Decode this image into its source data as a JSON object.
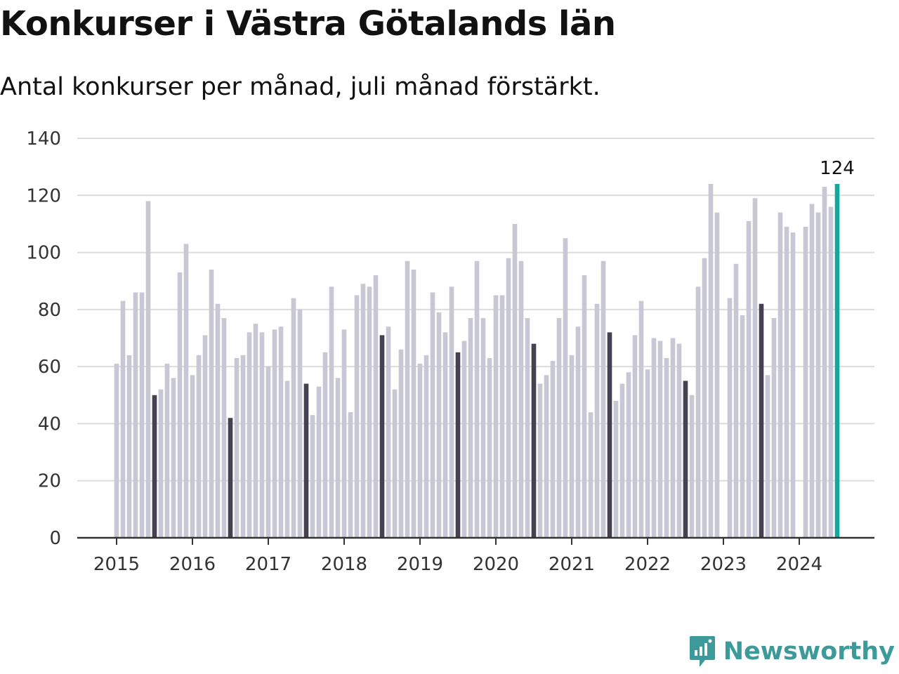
{
  "title": "Konkurser i Västra Götalands län",
  "subtitle": "Antal konkurser per månad, juli månad förstärkt.",
  "brand": {
    "name": "Newsworthy"
  },
  "colors": {
    "bar": "#c8c7d4",
    "july": "#454150",
    "latest": "#13a89e",
    "grid": "#dcdcdc",
    "axis": "#333333"
  },
  "chart_data": {
    "type": "bar",
    "title": "Konkurser i Västra Götalands län",
    "ylim": [
      0,
      140
    ],
    "yticks": [
      0,
      20,
      40,
      60,
      80,
      100,
      120,
      140
    ],
    "xtick_labels": [
      "2015",
      "2016",
      "2017",
      "2018",
      "2019",
      "2020",
      "2021",
      "2022",
      "2023",
      "2024"
    ],
    "grid": true,
    "start": "2015-01",
    "end": "2024-07",
    "highlight_month": 7,
    "value_label": "124",
    "series": [
      {
        "year": 2015,
        "values": [
          61,
          83,
          64,
          86,
          86,
          118,
          50,
          52,
          61,
          56,
          93,
          103
        ]
      },
      {
        "year": 2016,
        "values": [
          57,
          64,
          71,
          94,
          82,
          77,
          42,
          63,
          64,
          72,
          75,
          72
        ]
      },
      {
        "year": 2017,
        "values": [
          60,
          73,
          74,
          55,
          84,
          80,
          54,
          43,
          53,
          65,
          88,
          56
        ]
      },
      {
        "year": 2018,
        "values": [
          73,
          44,
          85,
          89,
          88,
          92,
          71,
          74,
          52,
          66,
          97,
          94
        ]
      },
      {
        "year": 2019,
        "values": [
          61,
          64,
          86,
          79,
          72,
          88,
          65,
          69,
          77,
          97,
          77,
          63
        ]
      },
      {
        "year": 2020,
        "values": [
          85,
          85,
          98,
          110,
          97,
          77,
          68,
          54,
          57,
          62,
          77,
          105
        ]
      },
      {
        "year": 2021,
        "values": [
          64,
          74,
          92,
          44,
          82,
          97,
          72,
          48,
          54,
          58,
          71,
          83
        ]
      },
      {
        "year": 2022,
        "values": [
          59,
          70,
          69,
          63,
          70,
          68,
          55,
          50,
          88,
          98,
          124,
          114
        ]
      },
      {
        "year": 2023,
        "values": [
          null,
          84,
          96,
          78,
          111,
          119,
          82,
          57,
          77,
          114,
          109,
          107
        ]
      },
      {
        "year": 2024,
        "values": [
          null,
          109,
          117,
          114,
          123,
          116,
          124
        ]
      }
    ]
  }
}
